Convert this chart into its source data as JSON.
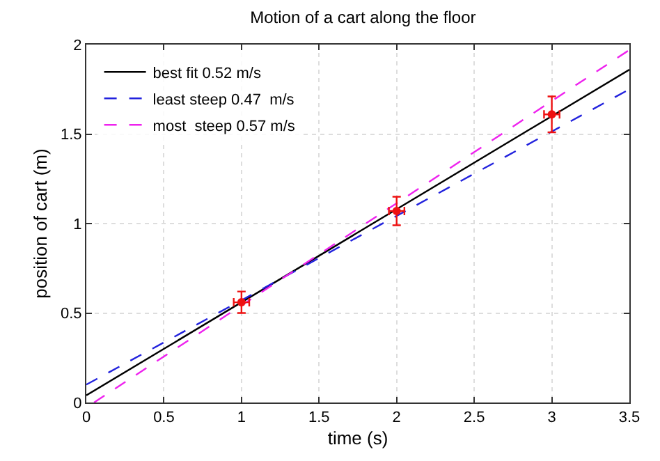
{
  "chart_data": {
    "type": "line",
    "title": "Motion of a cart along the floor",
    "xlabel": "time (s)",
    "ylabel": "position of cart (m)",
    "xlim": [
      0,
      3.5
    ],
    "xticks": [
      0,
      0.5,
      1,
      1.5,
      2,
      2.5,
      3,
      3.5
    ],
    "ylim": [
      0,
      2
    ],
    "yticks": [
      0,
      0.5,
      1,
      1.5,
      2
    ],
    "grid": true,
    "legend": "top left",
    "series": [
      {
        "name": "best fit 0.52 m/s",
        "color": "#000000",
        "x": [
          0,
          3.5
        ],
        "values": [
          0.04,
          1.86
        ],
        "line_style": "solid"
      },
      {
        "name": "least steep 0.47  m/s",
        "color": "#2222dd",
        "x": [
          0,
          3.5
        ],
        "values": [
          0.1,
          1.75
        ],
        "line_style": "dashed"
      },
      {
        "name": "most  steep 0.57 m/s",
        "color": "#ee22ee",
        "x": [
          0.05,
          3.5
        ],
        "values": [
          0,
          1.97
        ],
        "line_style": "dashed"
      },
      {
        "type": "scatter",
        "color": "#ee1111",
        "marker": "circle",
        "x": [
          1,
          2,
          3
        ],
        "values": [
          0.56,
          1.07,
          1.61
        ],
        "errors": [
          0.06,
          0.08,
          0.1
        ],
        "xerrors": [
          0.05,
          0.05,
          0.05
        ]
      }
    ]
  }
}
